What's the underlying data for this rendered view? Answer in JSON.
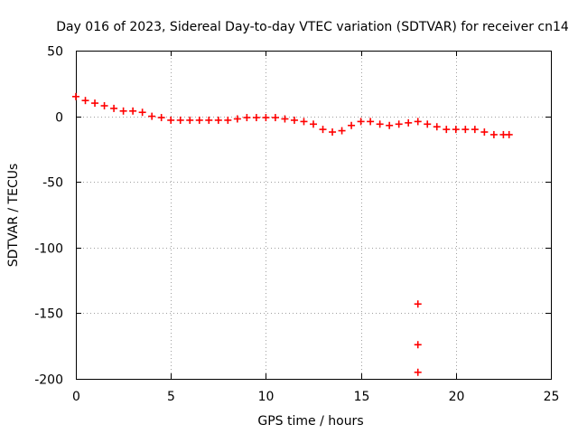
{
  "chart_data": {
    "type": "scatter",
    "title": "Day 016 of 2023, Sidereal Day-to-day VTEC variation (SDTVAR) for receiver cn14",
    "xlabel": "GPS time / hours",
    "ylabel": "SDTVAR / TECUs",
    "xlim": [
      0,
      25
    ],
    "ylim": [
      -200,
      50
    ],
    "xticks": [
      0,
      5,
      10,
      15,
      20,
      25
    ],
    "yticks": [
      50,
      0,
      -50,
      -100,
      -150,
      -200
    ],
    "grid": true,
    "marker": "plus",
    "series": [
      {
        "name": "SDTVAR",
        "color": "#ff0000",
        "x": [
          0.0,
          0.5,
          1.0,
          1.5,
          2.0,
          2.5,
          3.0,
          3.5,
          4.0,
          4.5,
          5.0,
          5.5,
          6.0,
          6.5,
          7.0,
          7.5,
          8.0,
          8.5,
          9.0,
          9.5,
          10.0,
          10.5,
          11.0,
          11.5,
          12.0,
          12.5,
          13.0,
          13.5,
          14.0,
          14.5,
          15.0,
          15.5,
          16.0,
          16.5,
          17.0,
          17.5,
          18.0,
          18.5,
          19.0,
          19.5,
          20.0,
          20.5,
          21.0,
          21.5,
          22.0,
          22.5,
          22.8,
          18.0,
          18.0,
          18.0
        ],
        "y": [
          15,
          12,
          10,
          8,
          6,
          4,
          4,
          3,
          0,
          -1,
          -3,
          -3,
          -3,
          -3,
          -3,
          -3,
          -3,
          -2,
          -1,
          -1,
          -1,
          -1,
          -2,
          -3,
          -4,
          -6,
          -10,
          -12,
          -11,
          -7,
          -4,
          -4,
          -6,
          -7,
          -6,
          -5,
          -4,
          -6,
          -8,
          -10,
          -10,
          -10,
          -10,
          -12,
          -14,
          -14,
          -14,
          -143,
          -174,
          -195
        ]
      }
    ]
  }
}
